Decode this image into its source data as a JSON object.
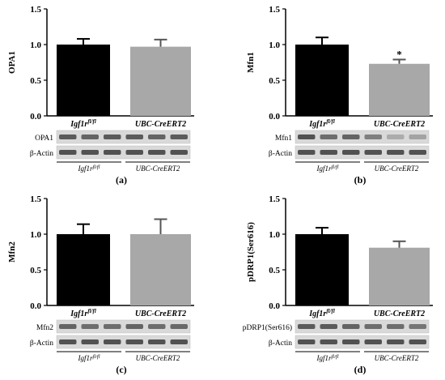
{
  "colors": {
    "control": "#000000",
    "knockout": "#a8a8a8",
    "axis": "#000000"
  },
  "panels": [
    {
      "id": "a",
      "panel_label": "(a)",
      "blot_rows": [
        "OPA1",
        "β-Actin"
      ],
      "group_labels": [
        "Igf1r",
        "UBC-CreERT2"
      ],
      "group_label_sup": "fl/fl",
      "band_intensity": [
        [
          0.8,
          0.75,
          0.8,
          0.8,
          0.75,
          0.8
        ],
        [
          0.85,
          0.85,
          0.85,
          0.85,
          0.85,
          0.85
        ]
      ]
    },
    {
      "id": "b",
      "panel_label": "(b)",
      "blot_rows": [
        "Mfn1",
        "β-Actin"
      ],
      "group_labels": [
        "Igf1r",
        "UBC-CreERT2"
      ],
      "group_label_sup": "fl/fl",
      "band_intensity": [
        [
          0.85,
          0.7,
          0.75,
          0.6,
          0.35,
          0.4
        ],
        [
          0.85,
          0.85,
          0.85,
          0.85,
          0.85,
          0.85
        ]
      ]
    },
    {
      "id": "c",
      "panel_label": "(c)",
      "blot_rows": [
        "Mfn2",
        "β-Actin"
      ],
      "group_labels": [
        "Igf1r",
        "UBC-CreERT2"
      ],
      "group_label_sup": "fl/fl",
      "band_intensity": [
        [
          0.75,
          0.7,
          0.7,
          0.75,
          0.7,
          0.72
        ],
        [
          0.85,
          0.85,
          0.85,
          0.85,
          0.85,
          0.85
        ]
      ]
    },
    {
      "id": "d",
      "panel_label": "(d)",
      "blot_rows": [
        "pDRP1(Ser616)",
        "β-Actin"
      ],
      "group_labels": [
        "Igf1r",
        "UBC-CreERT2"
      ],
      "group_label_sup": "fl/fl",
      "band_intensity": [
        [
          0.8,
          0.8,
          0.75,
          0.7,
          0.7,
          0.65
        ],
        [
          0.85,
          0.85,
          0.85,
          0.85,
          0.85,
          0.85
        ]
      ]
    }
  ],
  "chart_data": [
    {
      "type": "bar",
      "ylabel": "OPA1",
      "categories": [
        "Igf1r fl/fl",
        "UBC-CreERT2"
      ],
      "values": [
        1.0,
        0.97
      ],
      "errors": [
        0.08,
        0.1
      ],
      "ylim": [
        0,
        1.5
      ],
      "yticks": [
        "0.0",
        "0.5",
        "1.0",
        "1.5"
      ],
      "annotations": []
    },
    {
      "type": "bar",
      "ylabel": "Mfn1",
      "categories": [
        "Igf1r fl/fl",
        "UBC-CreERT2"
      ],
      "values": [
        1.0,
        0.73
      ],
      "errors": [
        0.1,
        0.06
      ],
      "ylim": [
        0,
        1.5
      ],
      "yticks": [
        "0.0",
        "0.5",
        "1.0",
        "1.5"
      ],
      "annotations": [
        "*"
      ]
    },
    {
      "type": "bar",
      "ylabel": "Mfn2",
      "categories": [
        "Igf1r fl/fl",
        "UBC-CreERT2"
      ],
      "values": [
        1.0,
        1.0
      ],
      "errors": [
        0.14,
        0.21
      ],
      "ylim": [
        0,
        1.5
      ],
      "yticks": [
        "0.0",
        "0.5",
        "1.0",
        "1.5"
      ],
      "annotations": []
    },
    {
      "type": "bar",
      "ylabel": "pDRP1(Ser616)",
      "categories": [
        "Igf1r fl/fl",
        "UBC-CreERT2"
      ],
      "values": [
        1.0,
        0.81
      ],
      "errors": [
        0.09,
        0.09
      ],
      "ylim": [
        0,
        1.5
      ],
      "yticks": [
        "0.0",
        "0.5",
        "1.0",
        "1.5"
      ],
      "annotations": []
    }
  ]
}
